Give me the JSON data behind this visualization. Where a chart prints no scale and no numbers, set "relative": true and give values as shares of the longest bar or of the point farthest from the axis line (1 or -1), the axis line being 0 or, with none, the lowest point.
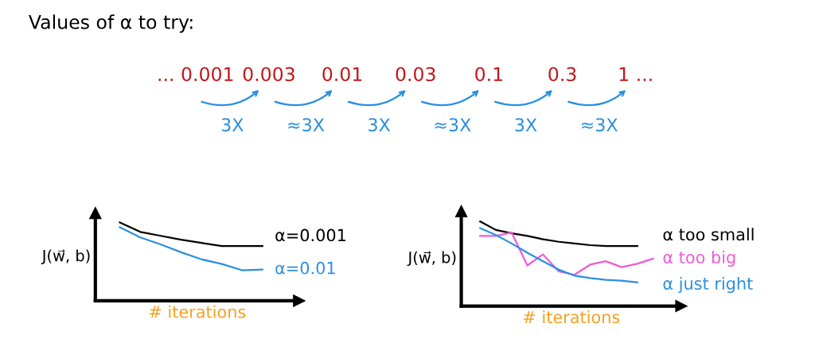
{
  "chart_data": [
    {
      "type": "other",
      "title": "Values of α to try:",
      "annotations": [
        "... 0.001",
        "0.003",
        "0.01",
        "0.03",
        "0.1",
        "0.3",
        "1 ...",
        "3X",
        "≈3X",
        "3X",
        "≈3X",
        "3X",
        "≈3X"
      ]
    },
    {
      "type": "line",
      "relative": true,
      "ylabel": "J(w⃗, b)",
      "xlabel": "# iterations",
      "legend": false,
      "categories": [
        null,
        null,
        null,
        null,
        null,
        null,
        null,
        null
      ],
      "series": [
        {
          "name": "α=0.001",
          "color": "#000000",
          "values": [
            1,
            0.88,
            0.83,
            0.78,
            0.74,
            0.7,
            0.7,
            0.7
          ]
        },
        {
          "name": "α=0.01",
          "color": "#2a8fe0",
          "values": [
            0.94,
            0.81,
            0.72,
            0.62,
            0.53,
            0.47,
            0.39,
            0.4
          ]
        }
      ]
    },
    {
      "type": "line",
      "relative": true,
      "ylabel": "J(w⃗, b)",
      "xlabel": "# iterations",
      "legend": false,
      "categories": [
        null,
        null,
        null,
        null,
        null,
        null,
        null,
        null,
        null,
        null,
        null,
        null
      ],
      "series": [
        {
          "name": "α too small",
          "color": "#000000",
          "values": [
            1,
            0.9,
            0.86,
            0.83,
            0.79,
            0.76,
            0.74,
            0.72,
            0.71,
            0.71,
            0.71,
            null
          ]
        },
        {
          "name": "α too big",
          "color": "#f05ad8",
          "values": [
            0.83,
            0.83,
            0.87,
            0.48,
            0.61,
            0.41,
            0.37,
            0.49,
            0.53,
            0.46,
            0.5,
            0.56
          ]
        },
        {
          "name": "α just right",
          "color": "#2a8fe0",
          "values": [
            0.92,
            0.84,
            0.74,
            0.63,
            0.53,
            0.43,
            0.36,
            0.33,
            0.31,
            0.3,
            0.28,
            null
          ]
        }
      ]
    }
  ]
}
